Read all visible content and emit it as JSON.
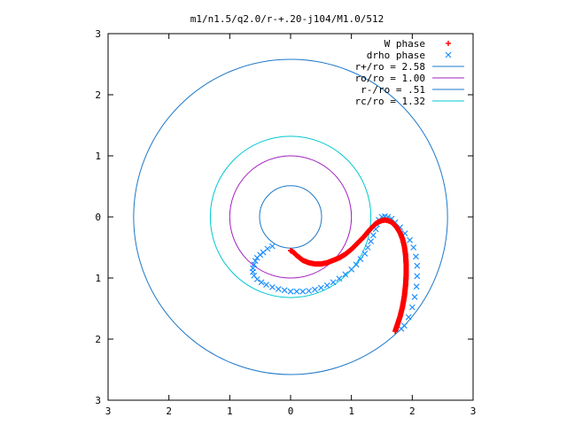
{
  "chart_data": {
    "type": "scatter",
    "title": "m1/n1.5/q2.0/r-+.20-j104/M1.0/512",
    "xlabel": "",
    "ylabel": "",
    "xlim": [
      -3,
      3
    ],
    "ylim": [
      -3,
      3
    ],
    "x_ticks": [
      -3,
      -2,
      -1,
      0,
      1,
      2,
      3
    ],
    "y_ticks": [
      -3,
      -2,
      -1,
      0,
      1,
      2,
      3
    ],
    "x_tick_labels": [
      "3",
      "2",
      "1",
      "0",
      "1",
      "2",
      "3"
    ],
    "y_tick_labels": [
      "3",
      "2",
      "1",
      "0",
      "1",
      "2",
      "3"
    ],
    "grid": false,
    "legend_position": "top-right",
    "series": [
      {
        "name": "W phase",
        "kind": "points",
        "marker": "+",
        "color": "#ff0000",
        "points": [
          [
            0.0,
            -0.55
          ],
          [
            0.05,
            -0.58
          ],
          [
            0.1,
            -0.63
          ],
          [
            0.15,
            -0.67
          ],
          [
            0.2,
            -0.71
          ],
          [
            0.25,
            -0.73
          ],
          [
            0.3,
            -0.75
          ],
          [
            0.35,
            -0.76
          ],
          [
            0.4,
            -0.77
          ],
          [
            0.45,
            -0.77
          ],
          [
            0.5,
            -0.77
          ],
          [
            0.55,
            -0.76
          ],
          [
            0.6,
            -0.75
          ],
          [
            0.65,
            -0.73
          ],
          [
            0.7,
            -0.71
          ],
          [
            0.75,
            -0.69
          ],
          [
            0.8,
            -0.67
          ],
          [
            0.85,
            -0.64
          ],
          [
            0.9,
            -0.61
          ],
          [
            0.95,
            -0.57
          ],
          [
            1.0,
            -0.53
          ],
          [
            1.05,
            -0.48
          ],
          [
            1.1,
            -0.43
          ],
          [
            1.15,
            -0.38
          ],
          [
            1.2,
            -0.33
          ],
          [
            1.25,
            -0.27
          ],
          [
            1.3,
            -0.21
          ],
          [
            1.35,
            -0.16
          ],
          [
            1.4,
            -0.11
          ],
          [
            1.45,
            -0.08
          ],
          [
            1.5,
            -0.06
          ],
          [
            1.55,
            -0.05
          ],
          [
            1.6,
            -0.06
          ],
          [
            1.65,
            -0.08
          ],
          [
            1.7,
            -0.12
          ],
          [
            1.75,
            -0.18
          ],
          [
            1.8,
            -0.26
          ],
          [
            1.84,
            -0.36
          ],
          [
            1.87,
            -0.48
          ],
          [
            1.89,
            -0.62
          ],
          [
            1.9,
            -0.78
          ],
          [
            1.9,
            -0.95
          ],
          [
            1.89,
            -1.12
          ],
          [
            1.87,
            -1.3
          ],
          [
            1.84,
            -1.47
          ],
          [
            1.8,
            -1.63
          ],
          [
            1.75,
            -1.78
          ],
          [
            1.72,
            -1.87
          ]
        ]
      },
      {
        "name": "drho phase",
        "kind": "points",
        "marker": "x",
        "color": "#1e90ff",
        "points": [
          [
            -0.3,
            -0.48
          ],
          [
            -0.38,
            -0.52
          ],
          [
            -0.45,
            -0.58
          ],
          [
            -0.5,
            -0.62
          ],
          [
            -0.55,
            -0.67
          ],
          [
            -0.58,
            -0.72
          ],
          [
            -0.6,
            -0.78
          ],
          [
            -0.62,
            -0.84
          ],
          [
            -0.62,
            -0.9
          ],
          [
            -0.6,
            -0.96
          ],
          [
            -0.55,
            -1.02
          ],
          [
            -0.48,
            -1.07
          ],
          [
            -0.4,
            -1.11
          ],
          [
            -0.3,
            -1.15
          ],
          [
            -0.2,
            -1.18
          ],
          [
            -0.1,
            -1.2
          ],
          [
            0.0,
            -1.22
          ],
          [
            0.1,
            -1.22
          ],
          [
            0.2,
            -1.22
          ],
          [
            0.3,
            -1.21
          ],
          [
            0.4,
            -1.19
          ],
          [
            0.5,
            -1.16
          ],
          [
            0.6,
            -1.12
          ],
          [
            0.7,
            -1.07
          ],
          [
            0.8,
            -1.01
          ],
          [
            0.9,
            -0.94
          ],
          [
            1.0,
            -0.86
          ],
          [
            1.08,
            -0.78
          ],
          [
            1.15,
            -0.69
          ],
          [
            1.22,
            -0.6
          ],
          [
            1.27,
            -0.5
          ],
          [
            1.32,
            -0.4
          ],
          [
            1.36,
            -0.3
          ],
          [
            1.4,
            -0.2
          ],
          [
            1.42,
            -0.12
          ],
          [
            1.45,
            -0.05
          ],
          [
            1.5,
            0.0
          ],
          [
            1.55,
            0.01
          ],
          [
            1.6,
            0.0
          ],
          [
            1.66,
            -0.03
          ],
          [
            1.72,
            -0.09
          ],
          [
            1.8,
            -0.17
          ],
          [
            1.88,
            -0.27
          ],
          [
            1.96,
            -0.38
          ],
          [
            2.02,
            -0.5
          ],
          [
            2.06,
            -0.65
          ],
          [
            2.08,
            -0.8
          ],
          [
            2.08,
            -0.97
          ],
          [
            2.07,
            -1.14
          ],
          [
            2.04,
            -1.31
          ],
          [
            2.0,
            -1.48
          ],
          [
            1.94,
            -1.64
          ],
          [
            1.87,
            -1.78
          ],
          [
            1.82,
            -1.83
          ]
        ]
      },
      {
        "name": "r+/ro = 2.58",
        "kind": "circle",
        "radius": 2.58,
        "color": "#1e78c8"
      },
      {
        "name": "ro/ro = 1.00",
        "kind": "circle",
        "radius": 1.0,
        "color": "#a020c0"
      },
      {
        "name": "r-/ro = .51",
        "kind": "circle",
        "radius": 0.51,
        "color": "#1e78c8"
      },
      {
        "name": "rc/ro = 1.32",
        "kind": "circle",
        "radius": 1.32,
        "color": "#00c8d2"
      }
    ]
  }
}
